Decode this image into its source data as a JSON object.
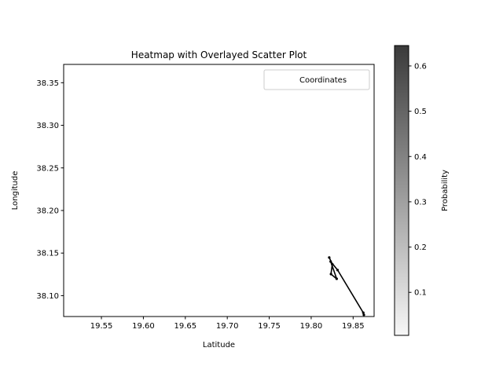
{
  "chart_data": {
    "type": "heatmap",
    "title": "Heatmap with Overlayed Scatter Plot",
    "xlabel": "Latitude",
    "ylabel": "Longitude",
    "xlim": [
      19.505,
      19.875
    ],
    "ylim": [
      38.0755,
      38.3715
    ],
    "x_ticks": [
      19.55,
      19.6,
      19.65,
      19.7,
      19.75,
      19.8,
      19.85
    ],
    "x_tick_labels": [
      "19.55",
      "19.60",
      "19.65",
      "19.70",
      "19.75",
      "19.80",
      "19.85"
    ],
    "y_ticks": [
      38.1,
      38.15,
      38.2,
      38.25,
      38.3,
      38.35
    ],
    "y_tick_labels": [
      "38.10",
      "38.15",
      "38.20",
      "38.25",
      "38.30",
      "38.35"
    ],
    "legend": {
      "entries": [
        "Coordinates"
      ],
      "placement": "upper-right"
    },
    "colorbar": {
      "label": "Probability",
      "min": 0.005,
      "max": 0.645,
      "ticks": [
        0.1,
        0.2,
        0.3,
        0.4,
        0.5,
        0.6
      ],
      "tick_labels": [
        "0.1",
        "0.2",
        "0.3",
        "0.4",
        "0.5",
        "0.6"
      ],
      "colormap_from": "#f7f7f7",
      "colormap_to": "#3a3a3a"
    },
    "series": [
      {
        "points": [
          {
            "x": 19.8215,
            "y": 38.1448
          },
          {
            "x": 19.8252,
            "y": 38.1368
          },
          {
            "x": 19.8236,
            "y": 38.1253
          },
          {
            "x": 19.8304,
            "y": 38.1198
          },
          {
            "x": 19.8232,
            "y": 38.1401
          },
          {
            "x": 19.8315,
            "y": 38.13
          },
          {
            "x": 19.8621,
            "y": 38.08
          },
          {
            "x": 19.8628,
            "y": 38.0775
          }
        ],
        "color": "#000000"
      }
    ]
  }
}
